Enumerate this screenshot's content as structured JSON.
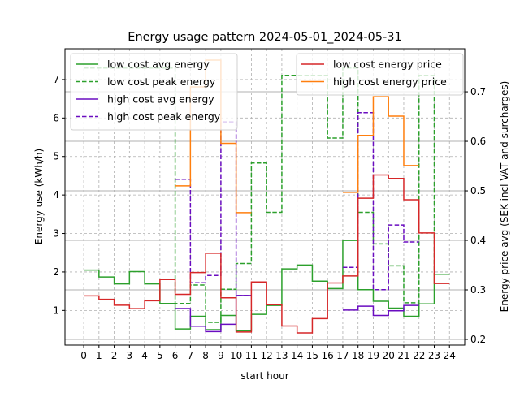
{
  "chart_data": {
    "type": "line",
    "step": "post",
    "title": "Energy usage pattern 2024-05-01_2024-05-31",
    "xlabel": "start hour",
    "ylabel": "Energy use (kWh/h)",
    "ylabel_right": "Energy price avg (SEK incl VAT and surcharges)",
    "xticks": [
      0,
      1,
      2,
      3,
      4,
      5,
      6,
      7,
      8,
      9,
      10,
      11,
      12,
      13,
      14,
      15,
      16,
      17,
      18,
      19,
      20,
      21,
      22,
      23,
      24
    ],
    "yticks": [
      1,
      2,
      3,
      4,
      5,
      6,
      7
    ],
    "yticks_right": [
      "0.2",
      "0.3",
      "0.4",
      "0.5",
      "0.6",
      "0.7"
    ],
    "xlim": [
      -1.23,
      25.0
    ],
    "ylim": [
      0.1,
      7.8
    ],
    "ylim_right": [
      0.1885,
      0.787
    ],
    "grid": true,
    "hours": [
      0,
      1,
      2,
      3,
      4,
      5,
      6,
      7,
      8,
      9,
      10,
      11,
      12,
      13,
      14,
      15,
      16,
      17,
      18,
      19,
      20,
      21,
      22,
      23
    ],
    "series_left": [
      {
        "name": "low cost avg energy",
        "color": "#2ca02c",
        "dash": false,
        "values": [
          2.05,
          1.87,
          1.69,
          2.01,
          1.69,
          1.18,
          0.52,
          0.85,
          0.5,
          0.87,
          0.47,
          0.9,
          1.13,
          2.08,
          2.18,
          1.76,
          1.57,
          2.82,
          1.54,
          1.24,
          1.06,
          0.85,
          1.17,
          1.94
        ]
      },
      {
        "name": "low cost peak energy",
        "color": "#2ca02c",
        "dash": true,
        "values": [
          7.3,
          7.3,
          7.3,
          7.3,
          7.3,
          7.3,
          1.18,
          1.66,
          0.69,
          1.55,
          2.22,
          4.83,
          3.55,
          7.11,
          7.11,
          7.11,
          5.48,
          7.3,
          3.55,
          2.73,
          2.16,
          1.2,
          7.11,
          1.94
        ]
      },
      {
        "name": "high cost avg energy",
        "color": "#6a0dc0",
        "dash": false,
        "values": [
          null,
          null,
          null,
          null,
          null,
          null,
          1.05,
          0.59,
          0.45,
          0.64,
          1.39,
          null,
          null,
          null,
          null,
          null,
          null,
          1.01,
          1.11,
          0.87,
          0.99,
          1.13,
          null,
          null
        ]
      },
      {
        "name": "high cost peak energy",
        "color": "#6a0dc0",
        "dash": true,
        "values": [
          null,
          null,
          null,
          null,
          null,
          null,
          4.41,
          1.72,
          1.91,
          5.9,
          1.39,
          null,
          null,
          null,
          null,
          null,
          null,
          2.12,
          6.14,
          1.54,
          3.22,
          2.78,
          null,
          null
        ]
      }
    ],
    "series_right": [
      {
        "name": "low cost energy price",
        "color": "#d62728",
        "dash": false,
        "values": [
          0.288,
          0.281,
          0.269,
          0.262,
          0.278,
          0.321,
          0.291,
          0.335,
          0.374,
          0.284,
          0.215,
          0.316,
          0.27,
          0.227,
          0.213,
          0.242,
          0.314,
          0.328,
          0.485,
          0.532,
          0.525,
          0.482,
          0.415,
          0.313
        ]
      },
      {
        "name": "high cost energy price",
        "color": "#ff7f0e",
        "dash": false,
        "values": [
          null,
          null,
          null,
          null,
          null,
          null,
          0.51,
          0.71,
          0.764,
          0.596,
          0.456,
          null,
          null,
          null,
          null,
          null,
          null,
          0.497,
          0.612,
          0.69,
          0.651,
          0.551,
          null,
          null
        ]
      }
    ],
    "legend_left_placement": "top-left",
    "legend_right_placement": "top-right"
  }
}
